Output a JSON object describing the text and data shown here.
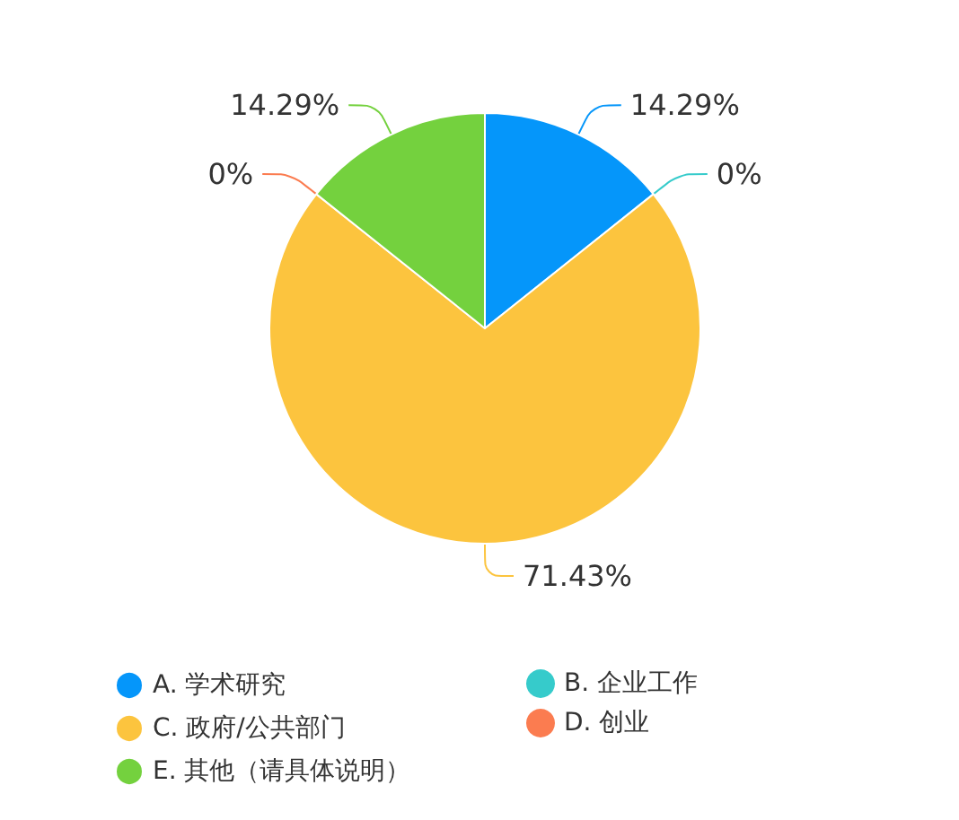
{
  "chart_data": {
    "type": "pie",
    "categories": [
      "A. 学术研究",
      "B. 企业工作",
      "C. 政府/公共部门",
      "D. 创业",
      "E. 其他（请具体说明）"
    ],
    "values": [
      14.29,
      0,
      71.43,
      0,
      14.29
    ],
    "value_labels": [
      "14.29%",
      "0%",
      "71.43%",
      "0%",
      "14.29%"
    ],
    "colors": [
      "#0596fa",
      "#36cbcb",
      "#fcc43e",
      "#fb7c50",
      "#74d13e"
    ],
    "legend": "bottom"
  }
}
